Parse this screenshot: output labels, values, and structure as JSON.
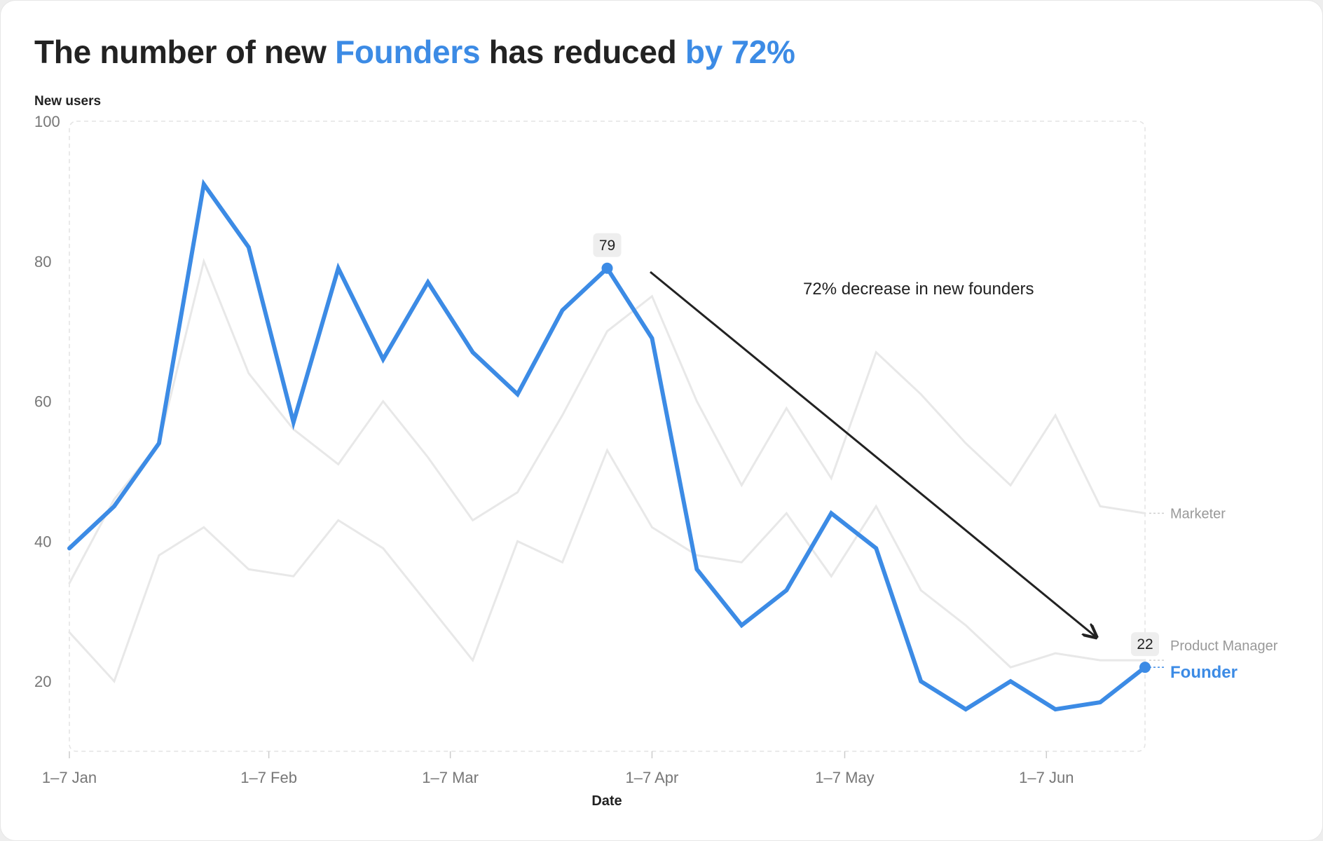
{
  "title": {
    "part1": "The number of new ",
    "part2": "Founders",
    "part3": " has reduced ",
    "part4": "by 72%"
  },
  "colors": {
    "accent": "#3c8be5",
    "muted_series": "#e8e8e8",
    "text": "#222222",
    "tick": "#777777"
  },
  "chart_data": {
    "type": "line",
    "ylabel": "New users",
    "xlabel": "Date",
    "ylim": [
      10,
      100
    ],
    "yticks": [
      100,
      80,
      60,
      40,
      20
    ],
    "xticks": [
      {
        "label": "1–7 Jan",
        "index": 0
      },
      {
        "label": "1–7 Feb",
        "index": 4.45
      },
      {
        "label": "1–7 Mar",
        "index": 8.5
      },
      {
        "label": "1–7 Apr",
        "index": 13
      },
      {
        "label": "1–7 May",
        "index": 17.3
      },
      {
        "label": "1–7 Jun",
        "index": 21.8
      }
    ],
    "grid": false,
    "series": [
      {
        "name": "Marketer",
        "highlight": false,
        "values": [
          34,
          46,
          54,
          80,
          64,
          56,
          51,
          60,
          52,
          43,
          47,
          58,
          70,
          75,
          60,
          48,
          59,
          49,
          67,
          61,
          54,
          48,
          58,
          45,
          44
        ]
      },
      {
        "name": "Product Manager",
        "highlight": false,
        "values": [
          27,
          20,
          38,
          42,
          36,
          35,
          43,
          39,
          31,
          23,
          40,
          37,
          53,
          42,
          38,
          37,
          44,
          35,
          45,
          33,
          28,
          22,
          24,
          23,
          23
        ]
      },
      {
        "name": "Founder",
        "highlight": true,
        "values": [
          39,
          45,
          54,
          91,
          82,
          57,
          79,
          66,
          77,
          67,
          61,
          73,
          79,
          69,
          36,
          28,
          33,
          44,
          39,
          20,
          16,
          20,
          16,
          17,
          22
        ]
      }
    ],
    "callouts": [
      {
        "series": "Founder",
        "index": 12,
        "label": "79"
      },
      {
        "series": "Founder",
        "index": 24,
        "label": "22"
      }
    ],
    "annotation": "72% decrease in new founders"
  }
}
